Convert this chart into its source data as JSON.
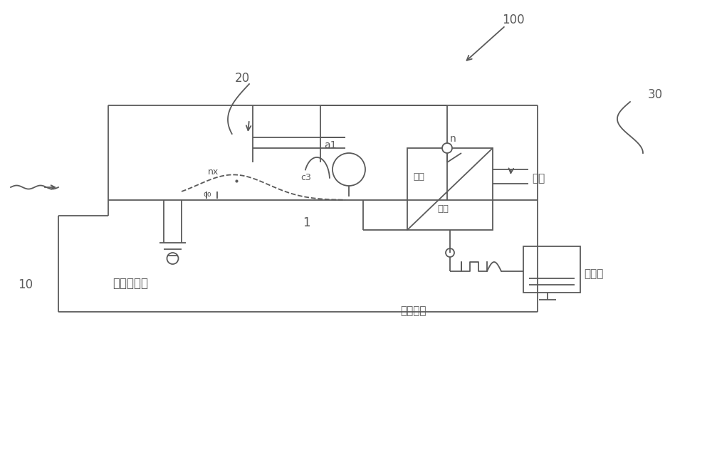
{
  "bg_color": "#ffffff",
  "lc": "#5a5a5a",
  "lw": 1.3,
  "label_100": "100",
  "label_20": "20",
  "label_30": "30",
  "label_10": "10",
  "label_1": "1",
  "label_nx": "nx",
  "label_a1": "a1",
  "label_c3": "c3",
  "label_n": "n",
  "label_gydk_top": "高压",
  "label_gydk_bot": "调控",
  "label_gongdian": "供电",
  "label_kongzhi": "控制通信",
  "label_jisuanji": "计算机",
  "label_deng": "等电位接地"
}
